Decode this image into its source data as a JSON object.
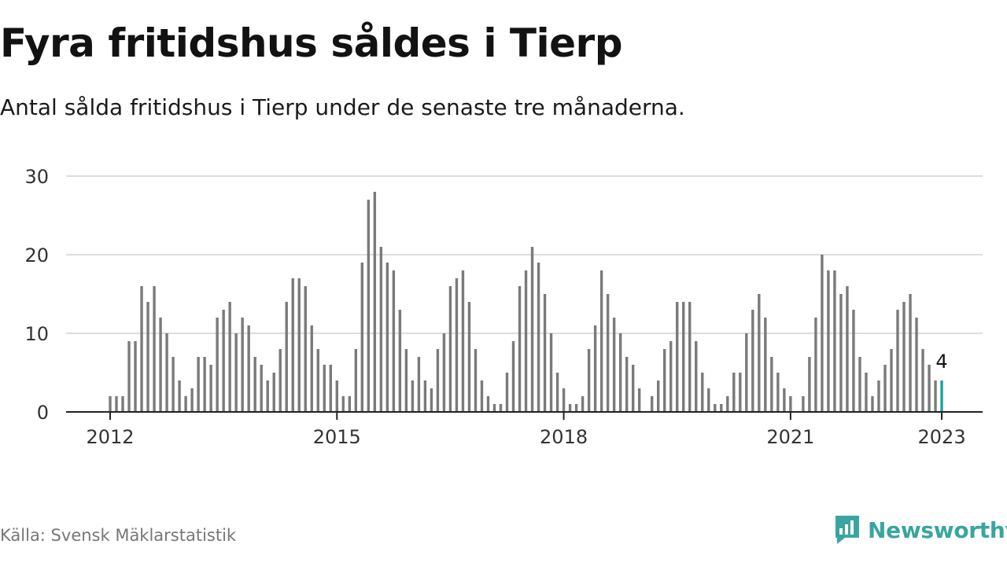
{
  "title": "Fyra fritidshus såldes i Tierp",
  "subtitle": "Antal sålda fritidshus i Tierp under de senaste tre månaderna.",
  "source": "Källa: Svensk Mäklarstatistik",
  "brand": {
    "name": "Newsworthy",
    "icon": "newsworthy-logo-icon"
  },
  "colors": {
    "bar": "#7a7a7a",
    "highlight": "#1aa3a0",
    "grid": "#dddddd",
    "axis": "#222222",
    "brand": "#3aa5a0"
  },
  "chart_data": {
    "type": "bar",
    "x_start": "2012-01",
    "x_end": "2023-01",
    "x_ticks": [
      "2012",
      "2015",
      "2018",
      "2021",
      "2023"
    ],
    "y_ticks": [
      "0",
      "10",
      "20",
      "30"
    ],
    "ylim": [
      0,
      30
    ],
    "grid": true,
    "values": [
      2,
      2,
      2,
      9,
      9,
      16,
      14,
      16,
      12,
      10,
      7,
      4,
      2,
      3,
      7,
      7,
      6,
      12,
      13,
      14,
      10,
      12,
      11,
      7,
      6,
      4,
      5,
      8,
      14,
      17,
      17,
      16,
      11,
      8,
      6,
      6,
      4,
      2,
      2,
      8,
      19,
      27,
      28,
      21,
      19,
      18,
      13,
      8,
      4,
      7,
      4,
      3,
      8,
      10,
      16,
      17,
      18,
      14,
      8,
      4,
      2,
      1,
      1,
      5,
      9,
      16,
      18,
      21,
      19,
      15,
      10,
      5,
      3,
      1,
      1,
      2,
      8,
      11,
      18,
      15,
      12,
      10,
      7,
      6,
      3,
      0,
      2,
      4,
      8,
      9,
      14,
      14,
      14,
      9,
      5,
      3,
      1,
      1,
      2,
      5,
      5,
      10,
      13,
      15,
      12,
      7,
      5,
      3,
      2,
      0,
      2,
      7,
      12,
      20,
      18,
      18,
      15,
      16,
      13,
      7,
      5,
      2,
      4,
      6,
      8,
      13,
      14,
      15,
      12,
      8,
      6,
      4,
      4
    ],
    "highlight": {
      "label": "4",
      "value": 4,
      "x": "2023-01"
    }
  }
}
